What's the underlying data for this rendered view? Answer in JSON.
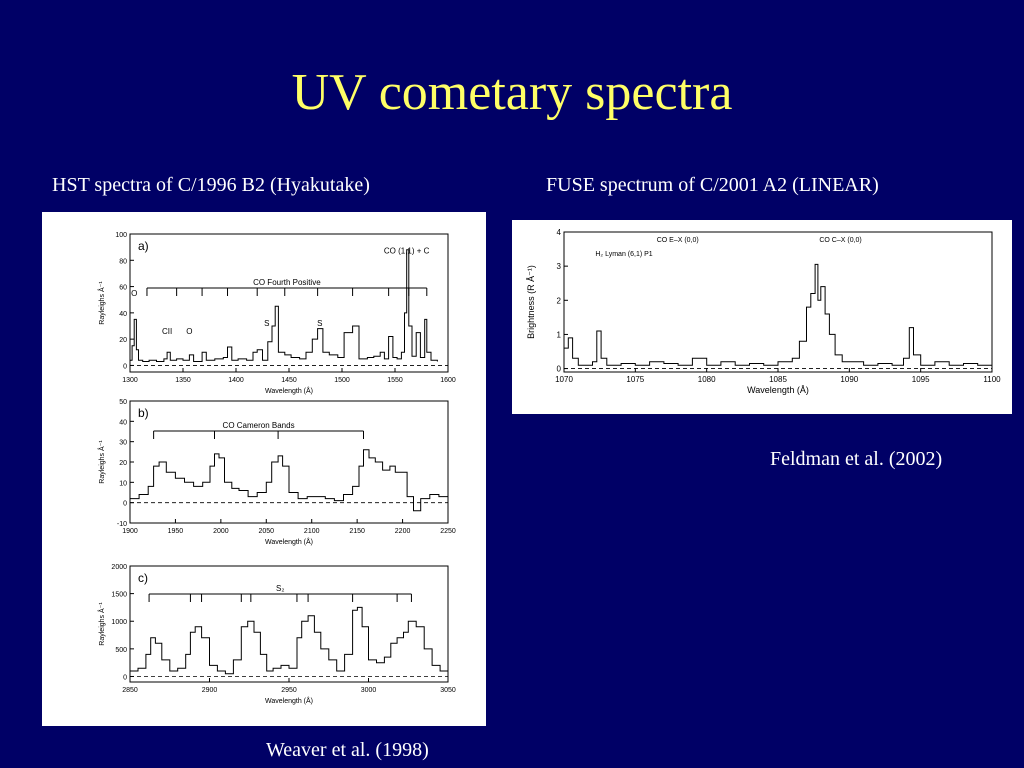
{
  "slide": {
    "title": "UV cometary spectra",
    "left_caption": "HST spectra of C/1996 B2 (Hyakutake)",
    "right_caption": "FUSE spectrum of C/2001 A2 (LINEAR)",
    "left_credit": "Weaver et al. (1998)",
    "right_credit": "Feldman et al. (2002)"
  },
  "colors": {
    "background": "#000066",
    "title": "#ffff66",
    "caption": "#ffffff"
  },
  "chart_data": [
    {
      "type": "line",
      "panel": "a)",
      "xlabel": "Wavelength (Å)",
      "ylabel": "Rayleighs Å⁻¹",
      "xlim": [
        1300,
        1600
      ],
      "ylim": [
        -5,
        100
      ],
      "xticks": [
        1300,
        1350,
        1400,
        1450,
        1500,
        1550,
        1600
      ],
      "yticks": [
        0,
        20,
        40,
        60,
        80,
        100
      ],
      "band_label": "CO Fourth Positive",
      "band_from": 1316,
      "band_to": 1580,
      "band_ticks": [
        1316,
        1344,
        1368,
        1392,
        1420,
        1446,
        1477,
        1510,
        1544,
        1563,
        1580
      ],
      "annotations": [
        {
          "text": "O",
          "x": 1304,
          "y": 53
        },
        {
          "text": "CII",
          "x": 1335,
          "y": 24
        },
        {
          "text": "O",
          "x": 1356,
          "y": 24
        },
        {
          "text": "S",
          "x": 1429,
          "y": 30
        },
        {
          "text": "S",
          "x": 1479,
          "y": 30
        },
        {
          "text": "CO (1,1) + C",
          "x": 1561,
          "y": 85
        }
      ],
      "x": [
        1300,
        1302,
        1304,
        1306,
        1308,
        1312,
        1318,
        1325,
        1332,
        1335,
        1338,
        1344,
        1350,
        1356,
        1360,
        1368,
        1372,
        1380,
        1388,
        1392,
        1396,
        1402,
        1410,
        1416,
        1420,
        1425,
        1430,
        1434,
        1437,
        1440,
        1446,
        1452,
        1460,
        1466,
        1472,
        1477,
        1482,
        1488,
        1496,
        1502,
        1510,
        1516,
        1524,
        1530,
        1536,
        1540,
        1544,
        1548,
        1552,
        1556,
        1559,
        1561,
        1563,
        1566,
        1570,
        1574,
        1578,
        1580,
        1584,
        1590
      ],
      "y": [
        4,
        15,
        35,
        12,
        4,
        3,
        4,
        3,
        5,
        10,
        4,
        5,
        4,
        8,
        3,
        10,
        4,
        5,
        6,
        14,
        4,
        5,
        4,
        10,
        12,
        4,
        18,
        30,
        45,
        10,
        8,
        6,
        5,
        10,
        20,
        28,
        10,
        8,
        6,
        25,
        30,
        5,
        6,
        7,
        10,
        5,
        22,
        6,
        5,
        10,
        40,
        88,
        30,
        7,
        25,
        6,
        35,
        10,
        4,
        3
      ]
    },
    {
      "type": "line",
      "panel": "b)",
      "xlabel": "Wavelength (Å)",
      "ylabel": "Rayleighs Å⁻¹",
      "xlim": [
        1900,
        2250
      ],
      "ylim": [
        -10,
        50
      ],
      "xticks": [
        1900,
        1950,
        2000,
        2050,
        2100,
        2150,
        2200,
        2250
      ],
      "yticks": [
        -10,
        0,
        10,
        20,
        30,
        40,
        50
      ],
      "band_label": "CO Cameron Bands",
      "band_from": 1926,
      "band_to": 2157,
      "band_ticks": [
        1926,
        1993,
        2063,
        2157
      ],
      "annotations": [],
      "x": [
        1900,
        1910,
        1920,
        1926,
        1932,
        1940,
        1950,
        1960,
        1970,
        1980,
        1988,
        1993,
        1998,
        2004,
        2012,
        2020,
        2030,
        2040,
        2050,
        2056,
        2063,
        2068,
        2075,
        2085,
        2095,
        2105,
        2115,
        2125,
        2135,
        2145,
        2152,
        2157,
        2163,
        2170,
        2178,
        2186,
        2192,
        2198,
        2205,
        2212,
        2220,
        2230,
        2240,
        2250
      ],
      "y": [
        2,
        4,
        8,
        18,
        20,
        15,
        12,
        10,
        8,
        10,
        18,
        24,
        22,
        10,
        7,
        6,
        3,
        5,
        10,
        20,
        23,
        18,
        5,
        2,
        3,
        3,
        2,
        1,
        4,
        8,
        18,
        26,
        22,
        20,
        16,
        18,
        15,
        15,
        3,
        -4,
        2,
        4,
        3,
        2
      ]
    },
    {
      "type": "line",
      "panel": "c)",
      "xlabel": "Wavelength (Å)",
      "ylabel": "Rayleighs Å⁻¹",
      "xlim": [
        2850,
        3050
      ],
      "ylim": [
        -100,
        2000
      ],
      "xticks": [
        2850,
        2900,
        2950,
        3000,
        3050
      ],
      "yticks": [
        0,
        500,
        1000,
        1500,
        2000
      ],
      "band_label": "S₂",
      "band_from": 2862,
      "band_to": 3027,
      "band_ticks": [
        2862,
        2888,
        2895,
        2920,
        2926,
        2955,
        2962,
        2990,
        3018,
        3027
      ],
      "annotations": [],
      "x": [
        2850,
        2855,
        2860,
        2863,
        2866,
        2870,
        2875,
        2880,
        2885,
        2888,
        2891,
        2895,
        2900,
        2905,
        2910,
        2915,
        2920,
        2924,
        2928,
        2932,
        2936,
        2940,
        2945,
        2950,
        2955,
        2958,
        2962,
        2966,
        2970,
        2975,
        2980,
        2985,
        2990,
        2993,
        2996,
        3000,
        3005,
        3010,
        3014,
        3018,
        3022,
        3025,
        3030,
        3035,
        3040,
        3045,
        3050
      ],
      "y": [
        100,
        150,
        400,
        700,
        600,
        300,
        100,
        150,
        400,
        800,
        900,
        700,
        200,
        100,
        50,
        300,
        900,
        1000,
        800,
        400,
        100,
        150,
        200,
        150,
        700,
        1000,
        1100,
        800,
        500,
        300,
        100,
        400,
        1200,
        1250,
        900,
        300,
        250,
        350,
        600,
        700,
        800,
        1000,
        900,
        500,
        200,
        100,
        50
      ]
    },
    {
      "type": "line",
      "xlabel": "Wavelength (Å)",
      "ylabel": "Brightness (R Å⁻¹)",
      "xlim": [
        1070,
        1100
      ],
      "ylim": [
        -0.1,
        4
      ],
      "xticks": [
        1070,
        1075,
        1080,
        1085,
        1090,
        1095,
        1100
      ],
      "yticks": [
        0,
        1,
        2,
        3,
        4
      ],
      "annotations": [
        {
          "text": "H₂ Lyman (6,1) P1",
          "x": 1072.2,
          "y": 3.3
        },
        {
          "text": "CO E–X (0,0)",
          "x": 1076.5,
          "y": 3.7
        },
        {
          "text": "CO C–X (0,0)",
          "x": 1087.9,
          "y": 3.7
        }
      ],
      "x": [
        1070,
        1070.3,
        1070.6,
        1071,
        1071.5,
        1072,
        1072.3,
        1072.6,
        1073,
        1074,
        1075,
        1076,
        1077,
        1078,
        1079,
        1080,
        1081,
        1082,
        1083,
        1084,
        1085,
        1086,
        1086.5,
        1087,
        1087.3,
        1087.6,
        1087.8,
        1088,
        1088.3,
        1088.6,
        1089,
        1089.5,
        1090,
        1091,
        1092,
        1093,
        1093.8,
        1094.2,
        1094.5,
        1095,
        1096,
        1097,
        1098,
        1099,
        1100
      ],
      "y": [
        0.6,
        0.9,
        0.3,
        0.1,
        0.1,
        0.2,
        1.1,
        0.3,
        0.1,
        0.15,
        0.1,
        0.2,
        0.15,
        0.1,
        0.3,
        0.1,
        0.2,
        0.1,
        0.15,
        0.1,
        0.2,
        0.3,
        0.8,
        1.8,
        2.2,
        3.05,
        2.0,
        2.4,
        1.6,
        1.0,
        0.4,
        0.2,
        0.2,
        0.1,
        0.15,
        0.1,
        0.3,
        1.2,
        0.4,
        0.1,
        0.2,
        0.1,
        0.15,
        0.1,
        0.1
      ]
    }
  ]
}
